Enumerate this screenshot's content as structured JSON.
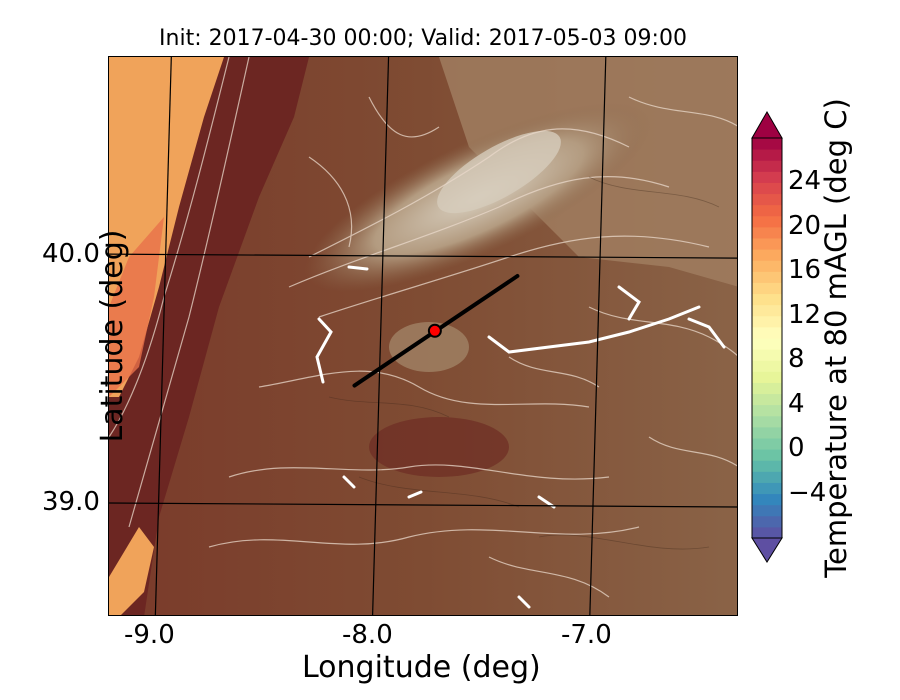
{
  "title": "Init: 2017-04-30 00:00; Valid: 2017-05-03 09:00",
  "xlabel": "Longitude (deg)",
  "ylabel": "Latitude (deg)",
  "x_ticks": [
    "-9.0",
    "-8.0",
    "-7.0"
  ],
  "y_ticks": [
    "40.0",
    "39.0"
  ],
  "colorbar": {
    "label": "Temperature at 80 mAGL (deg C)",
    "ticks": [
      "24",
      "20",
      "16",
      "12",
      "8",
      "4",
      "0",
      "−4"
    ],
    "tick_values": [
      24,
      20,
      16,
      12,
      8,
      4,
      0,
      -4
    ],
    "range": [
      -8,
      28
    ],
    "colormap": "Spectral_r",
    "extend": "both"
  },
  "map": {
    "x_range": [
      -9.25,
      -6.35
    ],
    "y_range": [
      38.55,
      40.8
    ],
    "graticule_lon": [
      -9.0,
      -8.0,
      -7.0
    ],
    "graticule_lat": [
      40.0,
      39.0
    ],
    "transect": {
      "start": [
        -8.12,
        39.48
      ],
      "end": [
        -7.37,
        39.92
      ]
    },
    "marker": {
      "lon": -7.75,
      "lat": 39.7,
      "color": "#ff0000"
    },
    "colors": {
      "coastal_warm": "#f2a65a",
      "hot_band": "#6e2a24",
      "land": "#7d4b32",
      "highlands": "#a38466",
      "contour": "#e6d8cc"
    }
  }
}
